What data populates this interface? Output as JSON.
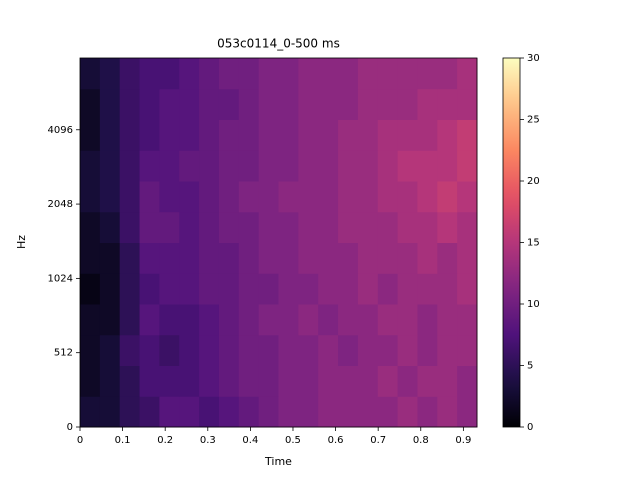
{
  "chart_data": {
    "type": "heatmap",
    "title": "053c0114_0-500 ms",
    "x_label": "Time",
    "y_label": "Hz",
    "xlim": [
      0,
      0.932
    ],
    "xticks": [
      0,
      0.1,
      0.2,
      0.3,
      0.4,
      0.5,
      0.6,
      0.7,
      0.8,
      0.9
    ],
    "ylim": [
      0,
      8000
    ],
    "yticks": [
      0,
      512,
      1024,
      2048,
      4096
    ],
    "yscale": "symlog",
    "linthresh": 512,
    "colormap": "magma",
    "clim": [
      0,
      30
    ],
    "colorbar_ticks": [
      0,
      5,
      10,
      15,
      20,
      25,
      30
    ],
    "z": [
      [
        3,
        3,
        5,
        6,
        8,
        8,
        7,
        8,
        9,
        10,
        11,
        11,
        12,
        12,
        12,
        12,
        13,
        12,
        13,
        12
      ],
      [
        2,
        3,
        5,
        7,
        7,
        7,
        8,
        9,
        10,
        10,
        11,
        11,
        12,
        12,
        12,
        13,
        12,
        13,
        13,
        12
      ],
      [
        2,
        3,
        6,
        7,
        6,
        7,
        8,
        9,
        10,
        10,
        11,
        11,
        12,
        11,
        12,
        12,
        13,
        12,
        13,
        13
      ],
      [
        2,
        2,
        5,
        8,
        7,
        7,
        8,
        9,
        10,
        11,
        11,
        12,
        11,
        12,
        12,
        13,
        13,
        12,
        13,
        13
      ],
      [
        1,
        2,
        5,
        7,
        8,
        8,
        9,
        9,
        10,
        10,
        11,
        11,
        12,
        12,
        13,
        12,
        13,
        13,
        13,
        14
      ],
      [
        2,
        2,
        5,
        8,
        8,
        8,
        9,
        9,
        10,
        11,
        11,
        12,
        12,
        12,
        13,
        13,
        13,
        14,
        13,
        14
      ],
      [
        2,
        3,
        6,
        9,
        9,
        8,
        9,
        10,
        10,
        11,
        11,
        12,
        12,
        13,
        13,
        13,
        14,
        14,
        15,
        14
      ],
      [
        3,
        4,
        6,
        9,
        8,
        8,
        9,
        10,
        11,
        11,
        12,
        12,
        12,
        13,
        13,
        14,
        14,
        15,
        16,
        15
      ],
      [
        3,
        4,
        6,
        8,
        8,
        9,
        9,
        10,
        10,
        11,
        11,
        12,
        12,
        13,
        13,
        14,
        15,
        15,
        15,
        16
      ],
      [
        2,
        4,
        6,
        7,
        8,
        8,
        9,
        10,
        10,
        11,
        11,
        12,
        12,
        13,
        13,
        14,
        14,
        14,
        15,
        16
      ],
      [
        2,
        4,
        6,
        7,
        8,
        8,
        9,
        9,
        10,
        11,
        11,
        12,
        12,
        12,
        13,
        13,
        13,
        14,
        14,
        14
      ],
      [
        3,
        4,
        6,
        7,
        7,
        8,
        9,
        10,
        10,
        11,
        11,
        12,
        12,
        12,
        13,
        13,
        13,
        13,
        13,
        14
      ]
    ]
  }
}
